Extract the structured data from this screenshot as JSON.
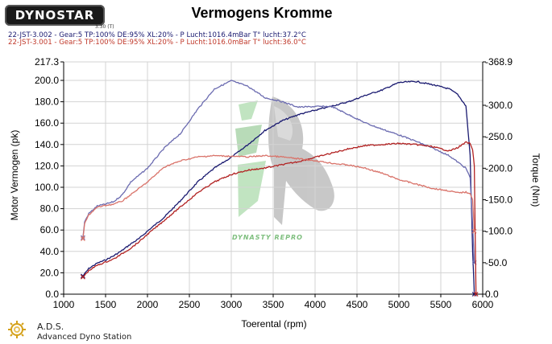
{
  "header": {
    "logo_text": "DYNOSTAR",
    "logo_sub": "3.30 (T)",
    "title": "Vermogens Kromme",
    "run1": "22-JST-3.002 - Gear:5 TP:100% DE:95% XL:20%   - P Lucht:1016.4mBar T° lucht:37.2°C",
    "run2": "22-JST-3.001 - Gear:5 TP:100% DE:95% XL:20%   - P Lucht:1016.0mBar T° lucht:36.0°C"
  },
  "footer": {
    "brand": "A.D.S.",
    "subtitle": "Advanced Dyno Station"
  },
  "watermark": {
    "caption": "DYNASTY REPRO"
  },
  "colors": {
    "run_navy": "#1a1a70",
    "run_blue": "#6b6bb0",
    "run_red": "#b22222",
    "run_salmon": "#d9736a",
    "grid": "#d3d3d3"
  },
  "chart_data": {
    "type": "line",
    "xlabel": "Toerental (rpm)",
    "ylabel_left": "Motor Vermogen (pk)",
    "ylabel_right": "Torque (Nm)",
    "xlim": [
      1000,
      6000
    ],
    "ylim_left": [
      0,
      217.3
    ],
    "ylim_right": [
      0,
      368.9
    ],
    "x_ticks": [
      "1000",
      "1500",
      "2000",
      "2500",
      "3000",
      "3500",
      "4000",
      "4500",
      "5000",
      "5500",
      "6000"
    ],
    "y_ticks_left": [
      "0.0",
      "20.0",
      "40.0",
      "60.0",
      "80.0",
      "100.0",
      "120.0",
      "140.0",
      "160.0",
      "180.0",
      "200.0",
      "217.3"
    ],
    "y_ticks_right": [
      "0.0",
      "-50.0",
      "-100.0",
      "-150.0",
      "-200.0",
      "-250.0",
      "-300.0",
      "-368.9"
    ],
    "y_ticks_right_values": [
      0,
      50,
      100,
      150,
      200,
      250,
      300,
      368.9
    ],
    "grid": true,
    "series": [
      {
        "run": "22-JST-3.002",
        "quantity": "power",
        "axis": "left",
        "color": "#1a1a70",
        "x": [
          1230,
          1300,
          1400,
          1500,
          1600,
          1700,
          1800,
          1900,
          2000,
          2200,
          2400,
          2600,
          2800,
          3000,
          3200,
          3400,
          3600,
          3800,
          4000,
          4200,
          4400,
          4600,
          4800,
          5000,
          5200,
          5400,
          5600,
          5700,
          5800,
          5850,
          5880,
          5900
        ],
        "y": [
          17,
          24,
          29,
          32,
          36,
          41,
          47,
          52,
          59,
          72,
          88,
          105,
          118,
          128,
          140,
          153,
          162,
          168,
          172,
          176,
          180,
          186,
          191,
          198,
          199,
          196,
          192,
          187,
          176,
          130,
          40,
          0
        ]
      },
      {
        "run": "22-JST-3.002",
        "quantity": "torque",
        "axis": "right",
        "color": "#6b6bb0",
        "x": [
          1230,
          1250,
          1300,
          1400,
          1500,
          1600,
          1700,
          1800,
          2000,
          2200,
          2400,
          2600,
          2800,
          3000,
          3200,
          3400,
          3600,
          3800,
          4000,
          4200,
          4400,
          4600,
          4800,
          5000,
          5200,
          5400,
          5600,
          5800,
          5850,
          5880,
          5900
        ],
        "y": [
          90,
          115,
          128,
          140,
          143,
          147,
          158,
          178,
          200,
          232,
          256,
          294,
          326,
          339,
          330,
          312,
          306,
          297,
          298,
          298,
          285,
          272,
          262,
          253,
          243,
          232,
          220,
          200,
          185,
          110,
          50
        ]
      },
      {
        "run": "22-JST-3.001",
        "quantity": "power",
        "axis": "left",
        "color": "#b22222",
        "x": [
          1230,
          1300,
          1400,
          1500,
          1600,
          1700,
          1800,
          1900,
          2000,
          2200,
          2400,
          2600,
          2800,
          3000,
          3200,
          3400,
          3600,
          3800,
          4000,
          4200,
          4400,
          4600,
          4800,
          5000,
          5200,
          5400,
          5600,
          5700,
          5800,
          5850,
          5880,
          5900,
          5920
        ],
        "y": [
          16,
          22,
          27,
          30,
          33,
          38,
          43,
          49,
          56,
          69,
          82,
          95,
          105,
          112,
          116,
          118,
          121,
          124,
          128,
          132,
          136,
          139,
          140,
          141,
          140,
          138,
          134,
          137,
          142,
          141,
          135,
          120,
          0
        ]
      },
      {
        "run": "22-JST-3.001",
        "quantity": "torque",
        "axis": "right",
        "color": "#d9736a",
        "x": [
          1230,
          1250,
          1300,
          1400,
          1500,
          1600,
          1700,
          1800,
          2000,
          2200,
          2400,
          2600,
          2800,
          3000,
          3200,
          3400,
          3600,
          3800,
          4000,
          4200,
          4400,
          4600,
          4800,
          5000,
          5200,
          5400,
          5600,
          5700,
          5800,
          5850,
          5880,
          5900
        ],
        "y": [
          88,
          112,
          126,
          138,
          141,
          143,
          148,
          158,
          178,
          202,
          212,
          218,
          220,
          219,
          218,
          220,
          218,
          215,
          212,
          208,
          205,
          200,
          192,
          182,
          175,
          168,
          164,
          161,
          162,
          160,
          150,
          100
        ]
      }
    ]
  }
}
